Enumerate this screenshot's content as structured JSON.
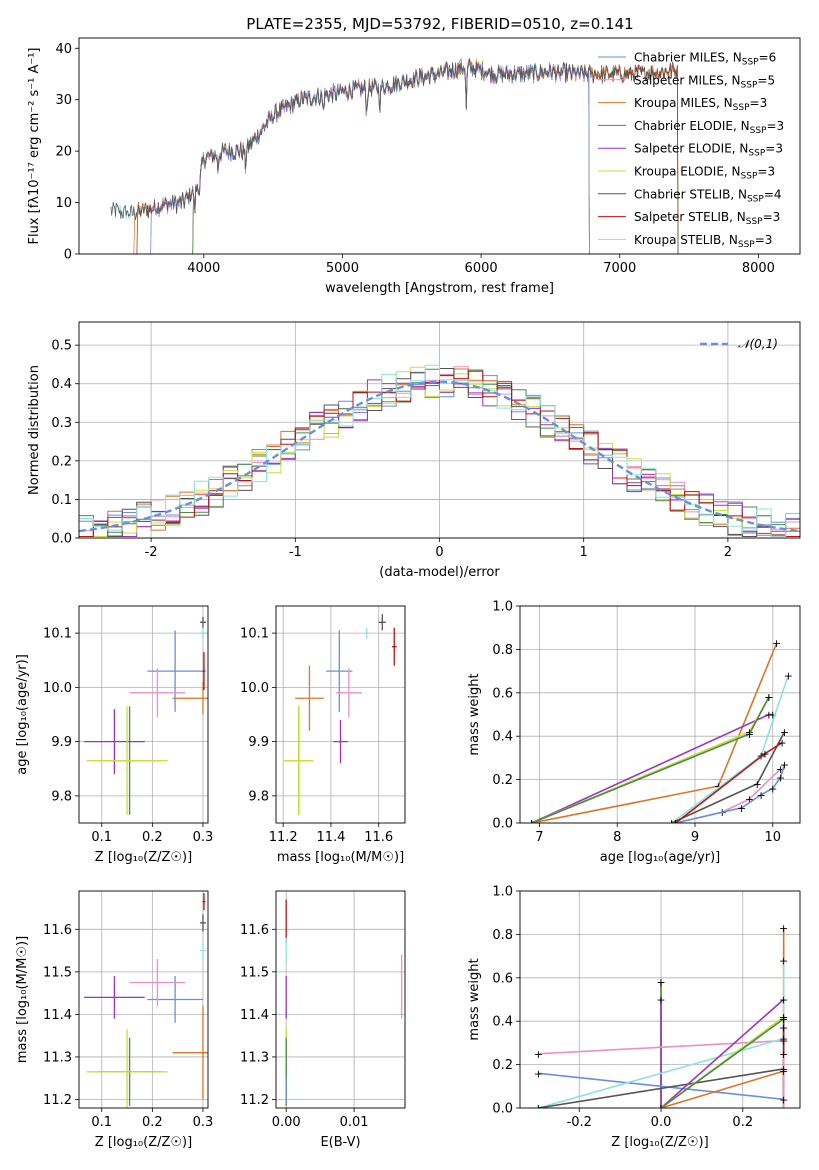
{
  "title": "PLATE=2355, MJD=53792, FIBERID=0510, z=0.141",
  "colors": {
    "Chabrier MILES": "#6a8fdb",
    "Salpeter MILES": "#e98fc9",
    "Kroupa MILES": "#d9762a",
    "Chabrier ELODIE": "#4a8a4a",
    "Salpeter ELODIE": "#9a35c0",
    "Kroupa ELODIE": "#c9df3c",
    "Chabrier STELIB": "#555555",
    "Salpeter STELIB": "#b81515",
    "Kroupa STELIB": "#8fe0e0"
  },
  "chart_data": [
    {
      "id": "spectrum",
      "type": "line",
      "xlabel": "wavelength [Angstrom, rest frame]",
      "ylabel": "Flux [fλ10⁻¹⁷ erg cm⁻² s⁻¹ A⁻¹]",
      "xlim": [
        3100,
        8300
      ],
      "ylim": [
        0,
        42
      ],
      "xticks": [
        4000,
        5000,
        6000,
        7000,
        8000
      ],
      "yticks": [
        0,
        10,
        20,
        30,
        40
      ],
      "legend_position": "top-right",
      "legend": [
        {
          "model": "Chabrier MILES",
          "label": "Chabrier MILES, N",
          "sub": "SSP",
          "tail": "=6"
        },
        {
          "model": "Salpeter MILES",
          "label": "Salpeter MILES, N",
          "sub": "SSP",
          "tail": "=5"
        },
        {
          "model": "Kroupa MILES",
          "label": "Kroupa MILES, N",
          "sub": "SSP",
          "tail": "=3"
        },
        {
          "model": "Chabrier ELODIE",
          "label": "Chabrier ELODIE, N",
          "sub": "SSP",
          "tail": "=3"
        },
        {
          "model": "Salpeter ELODIE",
          "label": "Salpeter ELODIE, N",
          "sub": "SSP",
          "tail": "=3"
        },
        {
          "model": "Kroupa ELODIE",
          "label": "Kroupa ELODIE, N",
          "sub": "SSP",
          "tail": "=3"
        },
        {
          "model": "Chabrier STELIB",
          "label": "Chabrier STELIB, N",
          "sub": "SSP",
          "tail": "=4"
        },
        {
          "model": "Salpeter STELIB",
          "label": "Salpeter STELIB, N",
          "sub": "SSP",
          "tail": "=3"
        },
        {
          "model": "Kroupa STELIB",
          "label": "Kroupa STELIB, N",
          "sub": "SSP",
          "tail": "=3"
        }
      ],
      "continuum_anchors": {
        "wavelength": [
          3330,
          3500,
          3700,
          3850,
          3950,
          4000,
          4150,
          4300,
          4500,
          4700,
          4900,
          5100,
          5300,
          5500,
          5700,
          5900,
          6100,
          6300,
          6500,
          6700,
          6900,
          7100,
          7300,
          7500
        ],
        "flux": [
          8.5,
          8.0,
          9.5,
          10.0,
          13.0,
          18.5,
          20.0,
          20.0,
          27.0,
          30.0,
          31.0,
          32.0,
          32.5,
          34.0,
          35.0,
          36.5,
          35.0,
          35.0,
          35.5,
          35.0,
          35.0,
          35.0,
          35.5,
          36.0
        ]
      },
      "drop_edges": {
        "Kroupa MILES": [
          3500,
          7420
        ],
        "Chabrier MILES": [
          3620,
          6780
        ],
        "Salpeter MILES": [
          3620,
          6780
        ],
        "Kroupa ELODIE": [
          3920,
          6780
        ],
        "Salpeter ELODIE": [
          3920,
          6780
        ],
        "Chabrier ELODIE": [
          3920,
          6780
        ],
        "Salpeter STELIB": [
          3520,
          7420
        ],
        "Chabrier STELIB": [
          3330,
          7420
        ],
        "Kroupa STELIB": [
          3330,
          7420
        ]
      }
    },
    {
      "id": "residuals",
      "type": "histogram",
      "xlabel": "(data-model)/error",
      "ylabel": "Normed distribution",
      "xlim": [
        -2.5,
        2.5
      ],
      "ylim": [
        0,
        0.56
      ],
      "xticks": [
        -2,
        -1,
        0,
        1,
        2
      ],
      "yticks": [
        0.0,
        0.1,
        0.2,
        0.3,
        0.4,
        0.5
      ],
      "grid": true,
      "bin_width": 0.1,
      "legend_position": "top-right",
      "reference_curve": {
        "label": "𝒩(0,1)",
        "style": "dashed",
        "color": "#6a8fdb",
        "scale": 0.405,
        "sigma": 1.0
      }
    },
    {
      "id": "age_vs_Z",
      "type": "scatter",
      "xlabel": "Z [log₁₀(Z/Z☉)]",
      "ylabel": "age  [log₁₀(age/yr)]",
      "xlim": [
        0.055,
        0.31
      ],
      "ylim": [
        9.75,
        10.15
      ],
      "xticks": [
        0.1,
        0.2,
        0.3
      ],
      "yticks": [
        9.8,
        9.9,
        10.0,
        10.1
      ],
      "grid": true,
      "points": [
        {
          "model": "Chabrier MILES",
          "x": 0.245,
          "y": 10.03,
          "xerr": 0.055,
          "yerr": 0.075
        },
        {
          "model": "Salpeter MILES",
          "x": 0.21,
          "y": 9.99,
          "xerr": 0.055,
          "yerr": 0.045
        },
        {
          "model": "Kroupa MILES",
          "x": 0.3,
          "y": 9.98,
          "xerr": 0.06,
          "yerr": 0.03
        },
        {
          "model": "Chabrier ELODIE",
          "x": 0.155,
          "y": 9.865,
          "xerr": 0.06,
          "yerr": 0.1
        },
        {
          "model": "Salpeter ELODIE",
          "x": 0.125,
          "y": 9.9,
          "xerr": 0.06,
          "yerr": 0.06
        },
        {
          "model": "Kroupa ELODIE",
          "x": 0.15,
          "y": 9.865,
          "xerr": 0.08,
          "yerr": 0.1
        },
        {
          "model": "Chabrier STELIB",
          "x": 0.3,
          "y": 10.12,
          "xerr": 0.006,
          "yerr": 0.01
        },
        {
          "model": "Salpeter STELIB",
          "x": 0.302,
          "y": 10.03,
          "xerr": 0.003,
          "yerr": 0.035
        },
        {
          "model": "Kroupa STELIB",
          "x": 0.3,
          "y": 10.1,
          "xerr": 0.006,
          "yerr": 0.01
        }
      ]
    },
    {
      "id": "age_vs_mass",
      "type": "scatter",
      "xlabel": "mass [log₁₀(M/M☉)]",
      "ylabel": "",
      "xlim": [
        11.17,
        11.71
      ],
      "ylim": [
        9.75,
        10.15
      ],
      "xticks": [
        11.2,
        11.4,
        11.6
      ],
      "yticks": [
        9.8,
        9.9,
        10.0,
        10.1
      ],
      "grid": true,
      "points": [
        {
          "model": "Chabrier MILES",
          "x": 11.435,
          "y": 10.03,
          "xerr": 0.055,
          "yerr": 0.075
        },
        {
          "model": "Salpeter MILES",
          "x": 11.475,
          "y": 9.99,
          "xerr": 0.055,
          "yerr": 0.045
        },
        {
          "model": "Kroupa MILES",
          "x": 11.31,
          "y": 9.98,
          "xerr": 0.06,
          "yerr": 0.06
        },
        {
          "model": "Chabrier ELODIE",
          "x": 11.265,
          "y": 9.865,
          "xerr": 0.06,
          "yerr": 0.1
        },
        {
          "model": "Salpeter ELODIE",
          "x": 11.44,
          "y": 9.9,
          "xerr": 0.03,
          "yerr": 0.04
        },
        {
          "model": "Kroupa ELODIE",
          "x": 11.265,
          "y": 9.865,
          "xerr": 0.06,
          "yerr": 0.1
        },
        {
          "model": "Chabrier STELIB",
          "x": 11.615,
          "y": 10.12,
          "xerr": 0.015,
          "yerr": 0.015
        },
        {
          "model": "Salpeter STELIB",
          "x": 11.665,
          "y": 10.075,
          "xerr": 0.01,
          "yerr": 0.035
        },
        {
          "model": "Kroupa STELIB",
          "x": 11.55,
          "y": 10.1,
          "xerr": 0.01,
          "yerr": 0.01
        }
      ]
    },
    {
      "id": "weight_vs_age",
      "type": "line",
      "xlabel": "age  [log₁₀(age/yr)]",
      "ylabel": "mass weight",
      "xlim": [
        6.75,
        10.35
      ],
      "ylim": [
        0,
        1
      ],
      "xticks": [
        7,
        8,
        9,
        10
      ],
      "yticks": [
        0.0,
        0.2,
        0.4,
        0.6,
        0.8,
        1.0
      ],
      "grid": true,
      "series": [
        {
          "model": "Kroupa MILES",
          "x": [
            6.9,
            9.3,
            10.05
          ],
          "y": [
            0.0,
            0.17,
            0.83
          ]
        },
        {
          "model": "Salpeter ELODIE",
          "x": [
            6.9,
            9.95,
            10.0
          ],
          "y": [
            0.0,
            0.5,
            0.5
          ]
        },
        {
          "model": "Kroupa ELODIE",
          "x": [
            6.9,
            9.7,
            9.95
          ],
          "y": [
            0.0,
            0.42,
            0.58
          ]
        },
        {
          "model": "Chabrier ELODIE",
          "x": [
            6.9,
            9.7,
            9.95
          ],
          "y": [
            0.0,
            0.41,
            0.58
          ]
        },
        {
          "model": "Kroupa STELIB",
          "x": [
            8.7,
            9.85,
            10.2
          ],
          "y": [
            0.0,
            0.31,
            0.68
          ]
        },
        {
          "model": "Chabrier STELIB",
          "x": [
            8.7,
            9.8,
            10.15
          ],
          "y": [
            0.0,
            0.18,
            0.42
          ]
        },
        {
          "model": "Salpeter MILES",
          "x": [
            8.75,
            9.35,
            9.7,
            10.1
          ],
          "y": [
            0.0,
            0.05,
            0.11,
            0.25
          ]
        },
        {
          "model": "Chabrier MILES",
          "x": [
            8.75,
            9.6,
            9.85,
            10.0,
            10.1,
            10.15
          ],
          "y": [
            0.0,
            0.07,
            0.13,
            0.16,
            0.21,
            0.27
          ]
        },
        {
          "model": "Salpeter STELIB",
          "x": [
            8.75,
            9.9,
            10.12
          ],
          "y": [
            0.0,
            0.32,
            0.37
          ]
        }
      ]
    },
    {
      "id": "mass_vs_Z",
      "type": "scatter",
      "xlabel": "Z [log₁₀(Z/Z☉)]",
      "ylabel": "mass [log₁₀(M/M☉)]",
      "xlim": [
        0.055,
        0.31
      ],
      "ylim": [
        11.18,
        11.69
      ],
      "xticks": [
        0.1,
        0.2,
        0.3
      ],
      "yticks": [
        11.2,
        11.3,
        11.4,
        11.5,
        11.6
      ],
      "grid": true,
      "points": [
        {
          "model": "Chabrier MILES",
          "x": 0.245,
          "y": 11.435,
          "xerr": 0.055,
          "yerr": 0.055
        },
        {
          "model": "Salpeter MILES",
          "x": 0.21,
          "y": 11.475,
          "xerr": 0.055,
          "yerr": 0.055
        },
        {
          "model": "Kroupa MILES",
          "x": 0.3,
          "y": 11.31,
          "xerr": 0.06,
          "yerr": 0.11
        },
        {
          "model": "Chabrier ELODIE",
          "x": 0.155,
          "y": 11.265,
          "xerr": 0.06,
          "yerr": 0.08
        },
        {
          "model": "Salpeter ELODIE",
          "x": 0.125,
          "y": 11.44,
          "xerr": 0.06,
          "yerr": 0.05
        },
        {
          "model": "Kroupa ELODIE",
          "x": 0.15,
          "y": 11.265,
          "xerr": 0.08,
          "yerr": 0.1
        },
        {
          "model": "Chabrier STELIB",
          "x": 0.3,
          "y": 11.615,
          "xerr": 0.006,
          "yerr": 0.02
        },
        {
          "model": "Salpeter STELIB",
          "x": 0.302,
          "y": 11.665,
          "xerr": 0.003,
          "yerr": 0.02
        },
        {
          "model": "Kroupa STELIB",
          "x": 0.3,
          "y": 11.55,
          "xerr": 0.006,
          "yerr": 0.02
        }
      ]
    },
    {
      "id": "mass_vs_ebv",
      "type": "scatter",
      "xlabel": "E(B-V)",
      "ylabel": "",
      "xlim": [
        -0.0015,
        0.0175
      ],
      "ylim": [
        11.18,
        11.69
      ],
      "xticks": [
        0.0,
        0.01
      ],
      "yticks": [
        11.2,
        11.3,
        11.4,
        11.5,
        11.6
      ],
      "grid": true,
      "points": [
        {
          "model": "Salpeter MILES",
          "x": 0.017,
          "y": 11.465,
          "xerr": 0,
          "yerr": 0.075
        },
        {
          "model": "Salpeter STELIB",
          "x": 0.0,
          "y": 11.62,
          "xerr": 0,
          "yerr": 0.05
        },
        {
          "model": "Kroupa STELIB",
          "x": 0.0,
          "y": 11.55,
          "xerr": 0,
          "yerr": 0.03
        },
        {
          "model": "Salpeter ELODIE",
          "x": 0.0,
          "y": 11.44,
          "xerr": 0,
          "yerr": 0.05
        },
        {
          "model": "Kroupa ELODIE",
          "x": 0.0,
          "y": 11.27,
          "xerr": 0,
          "yerr": 0.1
        },
        {
          "model": "Chabrier ELODIE",
          "x": 0.0,
          "y": 11.265,
          "xerr": 0,
          "yerr": 0.08
        },
        {
          "model": "Chabrier MILES",
          "x": 0.0,
          "y": 11.22,
          "xerr": 0,
          "yerr": 0.03
        }
      ]
    },
    {
      "id": "weight_vs_Z",
      "type": "line",
      "xlabel": "Z [log₁₀(Z/Z☉)]",
      "ylabel": "mass weight",
      "xlim": [
        -0.345,
        0.34
      ],
      "ylim": [
        0,
        1
      ],
      "xticks": [
        -0.2,
        0.0,
        0.2
      ],
      "yticks": [
        0.0,
        0.2,
        0.4,
        0.6,
        0.8,
        1.0
      ],
      "grid": true,
      "series": [
        {
          "model": "Salpeter MILES",
          "x": [
            -0.3,
            0.3
          ],
          "y": [
            0.25,
            0.31
          ]
        },
        {
          "model": "Chabrier MILES",
          "x": [
            -0.3,
            0.3
          ],
          "y": [
            0.16,
            0.04
          ]
        },
        {
          "model": "Kroupa STELIB",
          "x": [
            -0.3,
            0.3
          ],
          "y": [
            0.0,
            0.32
          ]
        },
        {
          "model": "Chabrier STELIB",
          "x": [
            -0.3,
            0.3
          ],
          "y": [
            0.0,
            0.18
          ]
        },
        {
          "model": "Salpeter ELODIE",
          "x": [
            0.0,
            0.3
          ],
          "y": [
            0.0,
            0.5
          ]
        },
        {
          "model": "Kroupa ELODIE",
          "x": [
            0.0,
            0.3
          ],
          "y": [
            0.0,
            0.42
          ]
        },
        {
          "model": "Chabrier ELODIE",
          "x": [
            0.0,
            0.3
          ],
          "y": [
            0.0,
            0.41
          ]
        },
        {
          "model": "Kroupa MILES",
          "x": [
            0.0,
            0.3
          ],
          "y": [
            0.0,
            0.17
          ]
        }
      ],
      "vertical_bars": [
        {
          "model": "Kroupa ELODIE",
          "x": 0.0,
          "y": [
            0.0,
            0.58
          ]
        },
        {
          "model": "Chabrier ELODIE",
          "x": 0.0,
          "y": [
            0.0,
            0.58
          ]
        },
        {
          "model": "Salpeter ELODIE",
          "x": 0.0,
          "y": [
            0.0,
            0.5
          ]
        },
        {
          "model": "Kroupa MILES",
          "x": 0.3,
          "y": [
            0.0,
            0.83
          ]
        },
        {
          "model": "Kroupa STELIB",
          "x": 0.3,
          "y": [
            0.0,
            0.68
          ]
        },
        {
          "model": "Chabrier STELIB",
          "x": 0.3,
          "y": [
            0.0,
            0.42
          ]
        },
        {
          "model": "Salpeter STELIB",
          "x": 0.3,
          "y": [
            0.0,
            0.37
          ]
        },
        {
          "model": "Salpeter MILES",
          "x": 0.3,
          "y": [
            0.0,
            0.25
          ]
        }
      ]
    }
  ]
}
